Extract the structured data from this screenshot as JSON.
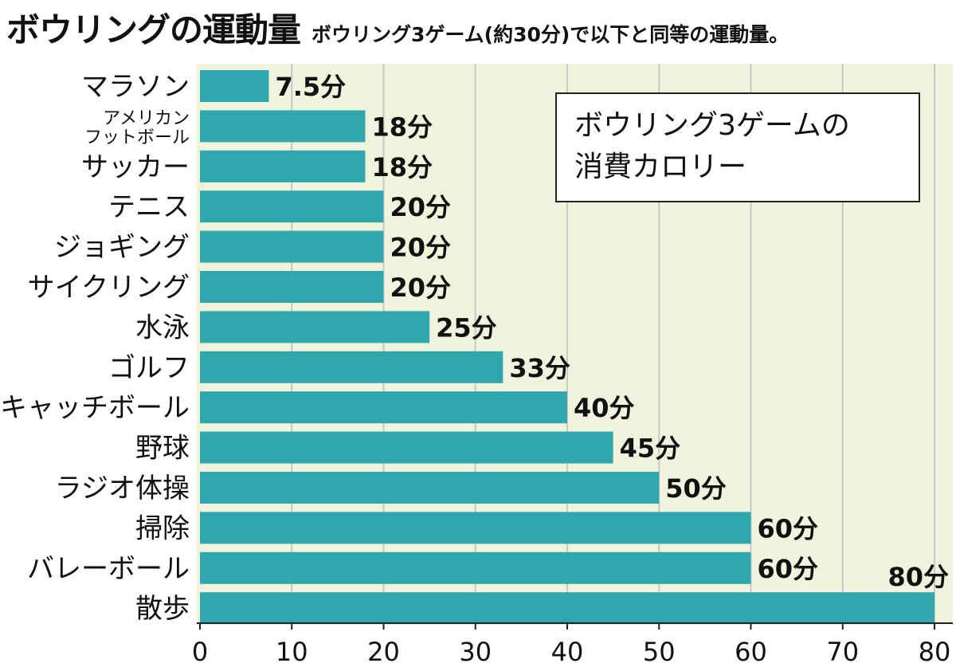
{
  "header": {
    "title": "ボウリングの運動量",
    "subtitle": "ボウリング3ゲーム(約30分)で以下と同等の運動量。"
  },
  "info_box": {
    "line1": "ボウリング3ゲームの",
    "line2": "消費カロリー"
  },
  "colors": {
    "bar": "#2fa8ad",
    "plot_background": "#f1f3dc",
    "grid": "#c8c8c8"
  },
  "chart_data": {
    "type": "bar",
    "orientation": "horizontal",
    "categories": [
      [
        "マラソン"
      ],
      [
        "アメリカン",
        "フットボール"
      ],
      [
        "サッカー"
      ],
      [
        "テニス"
      ],
      [
        "ジョギング"
      ],
      [
        "サイクリング"
      ],
      [
        "水泳"
      ],
      [
        "ゴルフ"
      ],
      [
        "キャッチボール"
      ],
      [
        "野球"
      ],
      [
        "ラジオ体操"
      ],
      [
        "掃除"
      ],
      [
        "バレーボール"
      ],
      [
        "散歩"
      ]
    ],
    "values": [
      7.5,
      18,
      18,
      20,
      20,
      20,
      25,
      33,
      40,
      45,
      50,
      60,
      60,
      80
    ],
    "value_labels": [
      "7.5分",
      "18分",
      "18分",
      "20分",
      "20分",
      "20分",
      "25分",
      "33分",
      "40分",
      "45分",
      "50分",
      "60分",
      "60分",
      "80分"
    ],
    "xlim": [
      0,
      80
    ],
    "xticks": [
      0,
      10,
      20,
      30,
      40,
      50,
      60,
      70,
      80
    ],
    "grid": true
  }
}
